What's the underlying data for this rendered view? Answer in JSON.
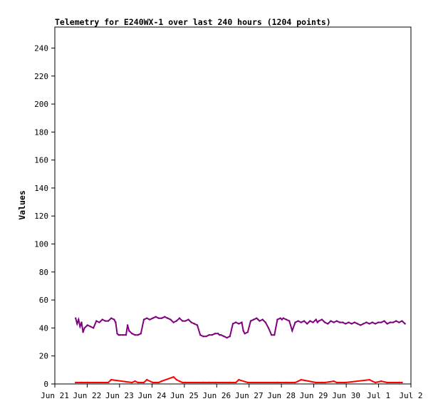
{
  "chart_data": {
    "type": "line",
    "title": "Telemetry for E240WX-1 over last 240 hours (1204 points)",
    "xlabel": "",
    "ylabel": "Values",
    "ylim": [
      0,
      255
    ],
    "yticks": [
      0,
      20,
      40,
      60,
      80,
      100,
      120,
      140,
      160,
      180,
      200,
      220,
      240
    ],
    "xrange_hours": [
      0,
      240
    ],
    "xticks": [
      {
        "label": "Jun 21",
        "hour": 0
      },
      {
        "label": "Jun 22",
        "hour": 21.8
      },
      {
        "label": "Jun 23",
        "hour": 43.6
      },
      {
        "label": "Jun 24",
        "hour": 65.5
      },
      {
        "label": "Jun 25",
        "hour": 87.3
      },
      {
        "label": "Jun 26",
        "hour": 109.1
      },
      {
        "label": "Jun 27",
        "hour": 130.9
      },
      {
        "label": "Jun 28",
        "hour": 152.7
      },
      {
        "label": "Jun 29",
        "hour": 174.5
      },
      {
        "label": "Jun 30",
        "hour": 196.4
      },
      {
        "label": "Jul 1",
        "hour": 218.2
      },
      {
        "label": "Jul 2",
        "hour": 240
      }
    ],
    "grid": false,
    "series": [
      {
        "color": "#800080",
        "x": [
          14,
          15,
          16,
          17,
          18,
          19,
          20,
          22,
          24,
          26,
          28,
          30,
          32,
          34,
          36,
          38,
          40,
          41,
          42,
          43,
          44,
          46,
          48,
          49,
          50,
          52,
          54,
          56,
          58,
          60,
          62,
          64,
          66,
          68,
          70,
          72,
          74,
          76,
          78,
          80,
          82,
          84,
          86,
          88,
          90,
          92,
          94,
          96,
          98,
          100,
          102,
          104,
          106,
          108,
          110,
          111,
          112,
          114,
          116,
          118,
          120,
          122,
          124,
          126,
          127,
          128,
          130,
          132,
          134,
          136,
          137,
          138,
          140,
          142,
          144,
          146,
          148,
          150,
          152,
          153,
          154,
          156,
          158,
          160,
          162,
          164,
          166,
          168,
          170,
          172,
          174,
          176,
          177,
          178,
          180,
          182,
          184,
          186,
          188,
          190,
          192,
          194,
          196,
          198,
          200,
          202,
          204,
          206,
          208,
          210,
          212,
          214,
          216,
          218,
          220,
          222,
          224,
          226,
          228,
          230,
          232,
          234,
          236
        ],
        "values": [
          47,
          43,
          46,
          41,
          44,
          37,
          40,
          42,
          41,
          40,
          45,
          44,
          46,
          45,
          45,
          47,
          46,
          44,
          36,
          35,
          35,
          35,
          35,
          42,
          38,
          36,
          35,
          35,
          36,
          46,
          47,
          46,
          47,
          48,
          47,
          47,
          48,
          47,
          46,
          44,
          45,
          47,
          45,
          45,
          46,
          44,
          43,
          42,
          35,
          34,
          34,
          35,
          35,
          36,
          36,
          35,
          35,
          34,
          33,
          34,
          43,
          44,
          43,
          44,
          38,
          36,
          37,
          45,
          46,
          47,
          46,
          45,
          46,
          44,
          40,
          35,
          35,
          46,
          47,
          46,
          47,
          46,
          45,
          38,
          44,
          45,
          44,
          45,
          43,
          45,
          44,
          46,
          44,
          45,
          46,
          44,
          43,
          45,
          44,
          45,
          44,
          44,
          43,
          44,
          43,
          44,
          43,
          42,
          43,
          44,
          43,
          44,
          43,
          44,
          44,
          45,
          43,
          44,
          44,
          45,
          44,
          45,
          43
        ]
      },
      {
        "color": "#ff0000",
        "x": [
          14,
          18,
          22,
          36,
          38,
          52,
          54,
          56,
          60,
          62,
          66,
          70,
          72,
          80,
          82,
          84,
          86,
          88,
          100,
          104,
          108,
          118,
          122,
          124,
          130,
          150,
          156,
          162,
          164,
          166,
          176,
          180,
          182,
          188,
          190,
          196,
          212,
          214,
          216,
          220,
          224,
          232,
          234
        ],
        "values": [
          1,
          1,
          1,
          1,
          3,
          1,
          2,
          1,
          1,
          3,
          1,
          1,
          2,
          5,
          3,
          2,
          1,
          1,
          1,
          1,
          1,
          1,
          1,
          3,
          1,
          1,
          1,
          1,
          2,
          3,
          1,
          1,
          1,
          2,
          1,
          1,
          3,
          2,
          1,
          2,
          1,
          1,
          1
        ]
      }
    ]
  }
}
